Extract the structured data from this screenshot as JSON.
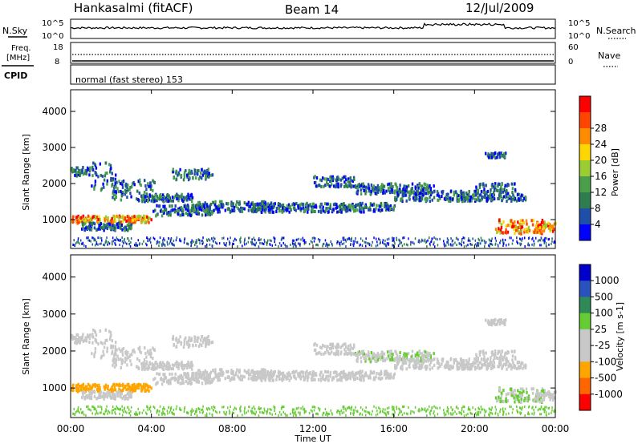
{
  "header": {
    "station": "Hankasalmi (fitACF)",
    "beam": "Beam 14",
    "date": "12/Jul/2009"
  },
  "noise_panel": {
    "left_label": "N.Sky",
    "right_label": "N.Search",
    "left_top": "10^5",
    "left_bottom": "10^0",
    "right_top": "10^5",
    "right_bottom": "10^0"
  },
  "freq_panel": {
    "left_label_1": "Freq.",
    "left_label_2": "[MHz]",
    "left_top": "18",
    "left_bottom": "8",
    "right_label": "Nave",
    "right_top": "60",
    "right_bottom": "0"
  },
  "cpid": {
    "label": "CPID",
    "text": "normal (fast stereo) 153"
  },
  "colors": {
    "power_scale": [
      "#0000ff",
      "#1f4fa8",
      "#2e7d4f",
      "#4aa04a",
      "#9acd32",
      "#ffd700",
      "#ff8c00",
      "#ff4500",
      "#ff0000"
    ],
    "velocity_scale": [
      "#0000cc",
      "#2a52be",
      "#2e8b57",
      "#66cc33",
      "#c8c8c8",
      "#c8c8c8",
      "#ffa500",
      "#ff6600",
      "#ff0000"
    ]
  },
  "chart_data": [
    {
      "type": "heatmap",
      "name": "power",
      "ylabel": "Slant Range [km]",
      "yticks": [
        "1000",
        "2000",
        "3000",
        "4000"
      ],
      "ylim": [
        200,
        4600
      ],
      "colorbar_label": "Power [dB]",
      "colorbar_ticks": [
        "4",
        "8",
        "12",
        "16",
        "20",
        "24",
        "28"
      ],
      "colorbar_range": [
        0,
        30
      ]
    },
    {
      "type": "heatmap",
      "name": "velocity",
      "ylabel": "Slant Range [km]",
      "yticks": [
        "1000",
        "2000",
        "3000",
        "4000"
      ],
      "ylim": [
        200,
        4600
      ],
      "colorbar_label": "Velocity [m s-1]",
      "colorbar_ticks": [
        "1000",
        "500",
        "100",
        "25",
        "-25",
        "-100",
        "-500",
        "-1000"
      ]
    }
  ],
  "x_axis": {
    "label": "Time UT",
    "ticks": [
      "00:00",
      "04:00",
      "08:00",
      "12:00",
      "16:00",
      "20:00",
      "00:00"
    ],
    "xlim_hours": [
      0,
      24
    ]
  }
}
